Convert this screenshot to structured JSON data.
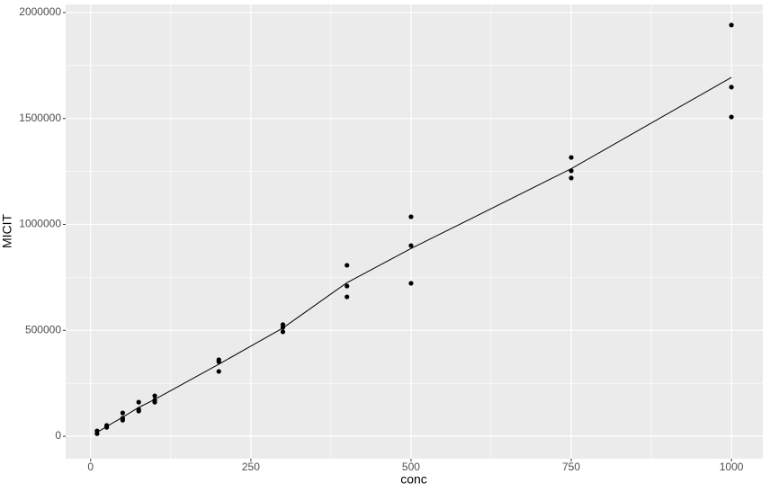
{
  "chart_data": {
    "type": "scatter",
    "x_label": "conc",
    "y_label": "MICIT",
    "xlim": [
      -39,
      1049
    ],
    "ylim": [
      -106000,
      2038000
    ],
    "xticks": [
      0,
      250,
      500,
      750,
      1000
    ],
    "yticks": [
      0,
      500000,
      1000000,
      1500000,
      2000000
    ],
    "grid": true,
    "series": [
      {
        "type": "scatter",
        "color": "#000000",
        "x": [
          10,
          10,
          25,
          25,
          50,
          50,
          50,
          75,
          75,
          75,
          100,
          100,
          100,
          200,
          200,
          200,
          300,
          300,
          300,
          400,
          400,
          400,
          500,
          500,
          500,
          750,
          750,
          750,
          1000,
          1000,
          1000
        ],
        "values": [
          25000,
          12000,
          51000,
          42000,
          110000,
          85000,
          76000,
          161000,
          127000,
          119000,
          191000,
          170000,
          161000,
          361000,
          352000,
          306000,
          527000,
          514000,
          493000,
          807000,
          709000,
          658000,
          1036000,
          900000,
          722000,
          1316000,
          1253000,
          1219000,
          1941000,
          1648000,
          1507000
        ]
      },
      {
        "type": "line",
        "color": "#000000",
        "x": [
          10,
          25,
          50,
          75,
          100,
          200,
          300,
          400,
          500,
          750,
          1000
        ],
        "values": [
          18000,
          46000,
          90000,
          136000,
          174000,
          340000,
          511000,
          725000,
          886000,
          1263000,
          1694000
        ]
      }
    ]
  }
}
